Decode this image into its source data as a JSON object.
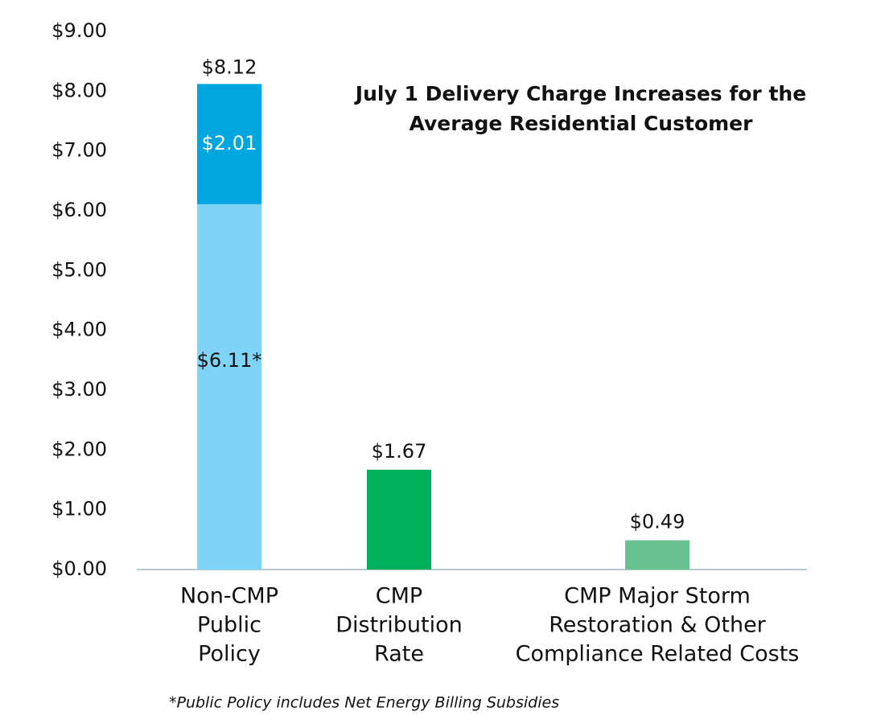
{
  "chart_data": {
    "type": "stacked-bar",
    "title": [
      "July 1 Delivery Charge Increases for the",
      "Average Residential Customer"
    ],
    "categories": [
      [
        "Non-CMP",
        "Public",
        "Policy"
      ],
      [
        "CMP",
        "Distribution",
        "Rate"
      ],
      [
        "CMP Major Storm",
        "Restoration & Other",
        "Compliance Related Costs"
      ]
    ],
    "series": [
      {
        "colors": [
          "#7fd3f7",
          "#00b05a",
          "#66c28f"
        ],
        "values": [
          6.11,
          1.67,
          0.49
        ],
        "value_labels": [
          "$6.11*",
          "$1.67",
          "$0.49"
        ],
        "label_colors": [
          "#111111",
          "#111111",
          "#111111"
        ]
      },
      {
        "colors": [
          "#00a6e0",
          null,
          null
        ],
        "values": [
          2.01,
          null,
          null
        ],
        "value_labels": [
          "$2.01",
          null,
          null
        ],
        "label_colors": [
          "#ffffff",
          null,
          null
        ]
      }
    ],
    "totals": [
      8.12,
      null,
      null
    ],
    "total_labels": [
      "$8.12",
      null,
      null
    ],
    "ylim": [
      0,
      9
    ],
    "yticks": [
      {
        "value": 0,
        "label": "$0.00"
      },
      {
        "value": 1,
        "label": "$1.00"
      },
      {
        "value": 2,
        "label": "$2.00"
      },
      {
        "value": 3,
        "label": "$3.00"
      },
      {
        "value": 4,
        "label": "$4.00"
      },
      {
        "value": 5,
        "label": "$5.00"
      },
      {
        "value": 6,
        "label": "$6.00"
      },
      {
        "value": 7,
        "label": "$7.00"
      },
      {
        "value": 8,
        "label": "$8.00"
      },
      {
        "value": 9,
        "label": "$9.00"
      }
    ],
    "footnote": "*Public Policy includes Net Energy Billing Subsidies"
  }
}
